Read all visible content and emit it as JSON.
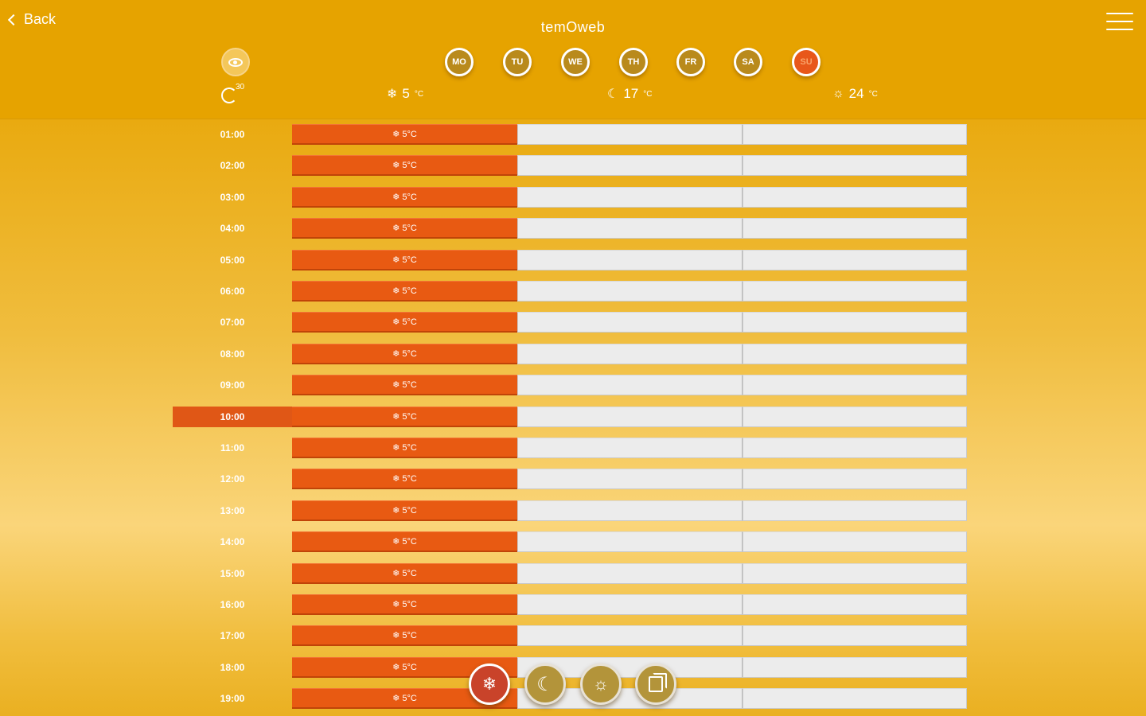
{
  "header": {
    "back_label": "Back",
    "logo_text": "temOweb"
  },
  "timer": {
    "label": "30"
  },
  "days": [
    {
      "label": "MO",
      "active": false
    },
    {
      "label": "TU",
      "active": false
    },
    {
      "label": "WE",
      "active": false
    },
    {
      "label": "TH",
      "active": false
    },
    {
      "label": "FR",
      "active": false
    },
    {
      "label": "SA",
      "active": false
    },
    {
      "label": "SU",
      "active": true
    }
  ],
  "temperatures": [
    {
      "icon": "snowflake-icon",
      "glyph": "❄",
      "value": "5",
      "unit": "°C"
    },
    {
      "icon": "moon-icon",
      "glyph": "☾",
      "value": "17",
      "unit": "°C"
    },
    {
      "icon": "sun-icon",
      "glyph": "☼",
      "value": "24",
      "unit": "°C"
    }
  ],
  "schedule": {
    "current_time": "10:00",
    "cell_label": "❄ 5°C",
    "rows": [
      "01:00",
      "02:00",
      "03:00",
      "04:00",
      "05:00",
      "06:00",
      "07:00",
      "08:00",
      "09:00",
      "10:00",
      "11:00",
      "12:00",
      "13:00",
      "14:00",
      "15:00",
      "16:00",
      "17:00",
      "18:00",
      "19:00"
    ]
  },
  "actions": [
    {
      "name": "snowflake-mode-button",
      "icon": "snowflake-icon",
      "glyph": "❄",
      "active": true
    },
    {
      "name": "night-mode-button",
      "icon": "moon-icon",
      "glyph": "☾",
      "active": false
    },
    {
      "name": "day-mode-button",
      "icon": "sun-icon",
      "glyph": "☼",
      "active": false
    },
    {
      "name": "copy-button",
      "icon": "copy-icon",
      "glyph": "",
      "active": false
    }
  ],
  "colors": {
    "background": "#e6a300",
    "accent": "#e85a12",
    "empty_cell": "#ececec"
  }
}
